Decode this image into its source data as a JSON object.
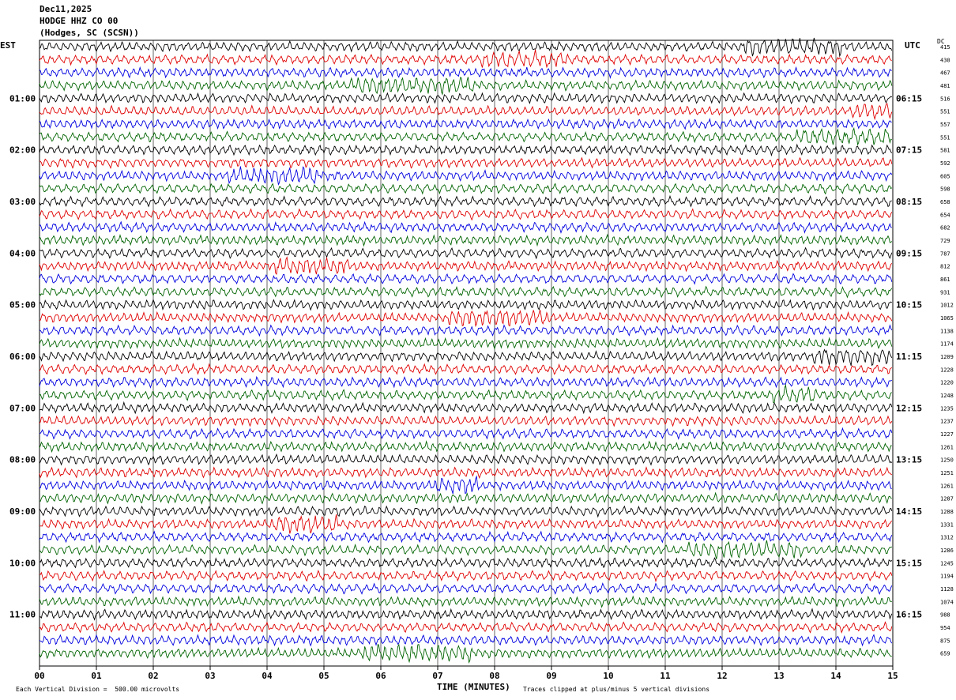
{
  "header": {
    "date": "Dec11,2025",
    "station": "HODGE HHZ CO 00",
    "location": "(Hodges, SC (SCSN))"
  },
  "axes": {
    "left_tz": "EST",
    "right_tz": "UTC",
    "dc_label": "DC",
    "xlabel": "TIME (MINUTES)"
  },
  "footer": {
    "scale": "Each Vertical Division =  500.00 microvolts",
    "clip": "Traces clipped at plus/minus 5 vertical divisions"
  },
  "colors": {
    "trace_cycle": [
      "#000000",
      "#e00000",
      "#0000e0",
      "#006400"
    ],
    "grid": "#000000"
  },
  "chart_data": {
    "type": "line",
    "x_range": [
      0,
      15
    ],
    "x_ticks": [
      "00",
      "01",
      "02",
      "03",
      "04",
      "05",
      "06",
      "07",
      "08",
      "09",
      "10",
      "11",
      "12",
      "13",
      "14",
      "15"
    ],
    "trace_count": 48,
    "left_hour_labels": [
      "01:00",
      "02:00",
      "03:00",
      "04:00",
      "05:00",
      "06:00",
      "07:00",
      "08:00",
      "09:00",
      "10:00",
      "11:00"
    ],
    "right_hour_labels": [
      "06:15",
      "07:15",
      "08:15",
      "09:15",
      "10:15",
      "11:15",
      "12:15",
      "13:15",
      "14:15",
      "15:15",
      "16:15"
    ],
    "dc_offsets": [
      415,
      430,
      467,
      481,
      516,
      551,
      557,
      551,
      581,
      592,
      605,
      598,
      658,
      654,
      682,
      729,
      787,
      812,
      861,
      931,
      1012,
      1065,
      1138,
      1174,
      1209,
      1228,
      1220,
      1248,
      1235,
      1237,
      1227,
      1261,
      1250,
      1251,
      1261,
      1287,
      1288,
      1331,
      1312,
      1286,
      1245,
      1194,
      1128,
      1074,
      988,
      954,
      875,
      659
    ]
  }
}
